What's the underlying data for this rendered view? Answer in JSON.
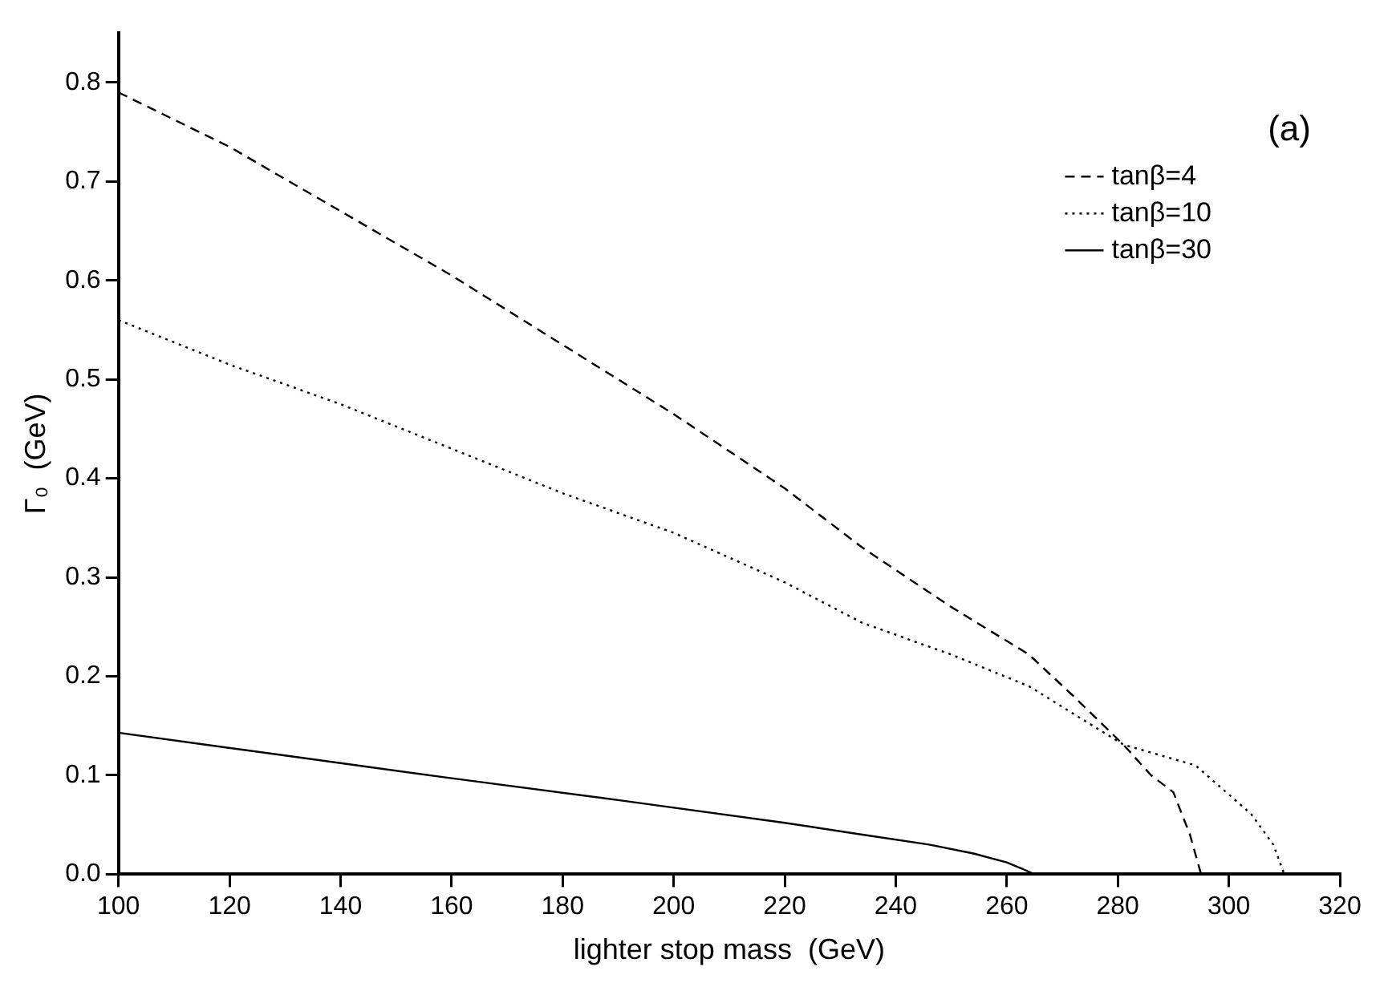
{
  "chart_data": {
    "type": "line",
    "xlabel": "lighter stop mass  (GeV)",
    "ylabel": "Γ₀  (GeV)",
    "annotations": [
      "(a)"
    ],
    "xlim": [
      100,
      320
    ],
    "xticks": [
      100,
      120,
      140,
      160,
      180,
      200,
      220,
      240,
      260,
      280,
      300,
      320
    ],
    "ylim": [
      0,
      0.85
    ],
    "yticks": [
      {
        "value": 0,
        "label": "0.0"
      },
      0.1,
      0.2,
      0.3,
      0.4,
      0.5,
      0.6,
      0.7,
      0.8
    ],
    "legend": "top right",
    "marker": "none",
    "grid": false,
    "series": [
      {
        "name": "tanβ=4",
        "color": "#000000",
        "line_style": "dashed",
        "x": [
          100,
          120,
          140,
          160,
          180,
          200,
          220,
          234,
          250,
          264,
          272,
          281,
          286,
          290,
          293,
          295
        ],
        "values": [
          0.79,
          0.735,
          0.67,
          0.605,
          0.535,
          0.465,
          0.39,
          0.33,
          0.27,
          0.222,
          0.18,
          0.131,
          0.1,
          0.083,
          0.04,
          0
        ]
      },
      {
        "name": "tanβ=10",
        "color": "#000000",
        "line_style": "dotted",
        "x": [
          100,
          120,
          140,
          160,
          180,
          200,
          220,
          234,
          250,
          264,
          281,
          294,
          304,
          308,
          310
        ],
        "values": [
          0.56,
          0.515,
          0.475,
          0.43,
          0.385,
          0.345,
          0.295,
          0.254,
          0.222,
          0.19,
          0.131,
          0.11,
          0.061,
          0.03,
          0
        ]
      },
      {
        "name": "tanβ=30",
        "color": "#000000",
        "line_style": "solid",
        "x": [
          100,
          130,
          160,
          190,
          220,
          234,
          246,
          254,
          260,
          263,
          265
        ],
        "values": [
          0.143,
          0.12,
          0.097,
          0.075,
          0.052,
          0.04,
          0.03,
          0.021,
          0.012,
          0.005,
          0
        ]
      }
    ]
  }
}
